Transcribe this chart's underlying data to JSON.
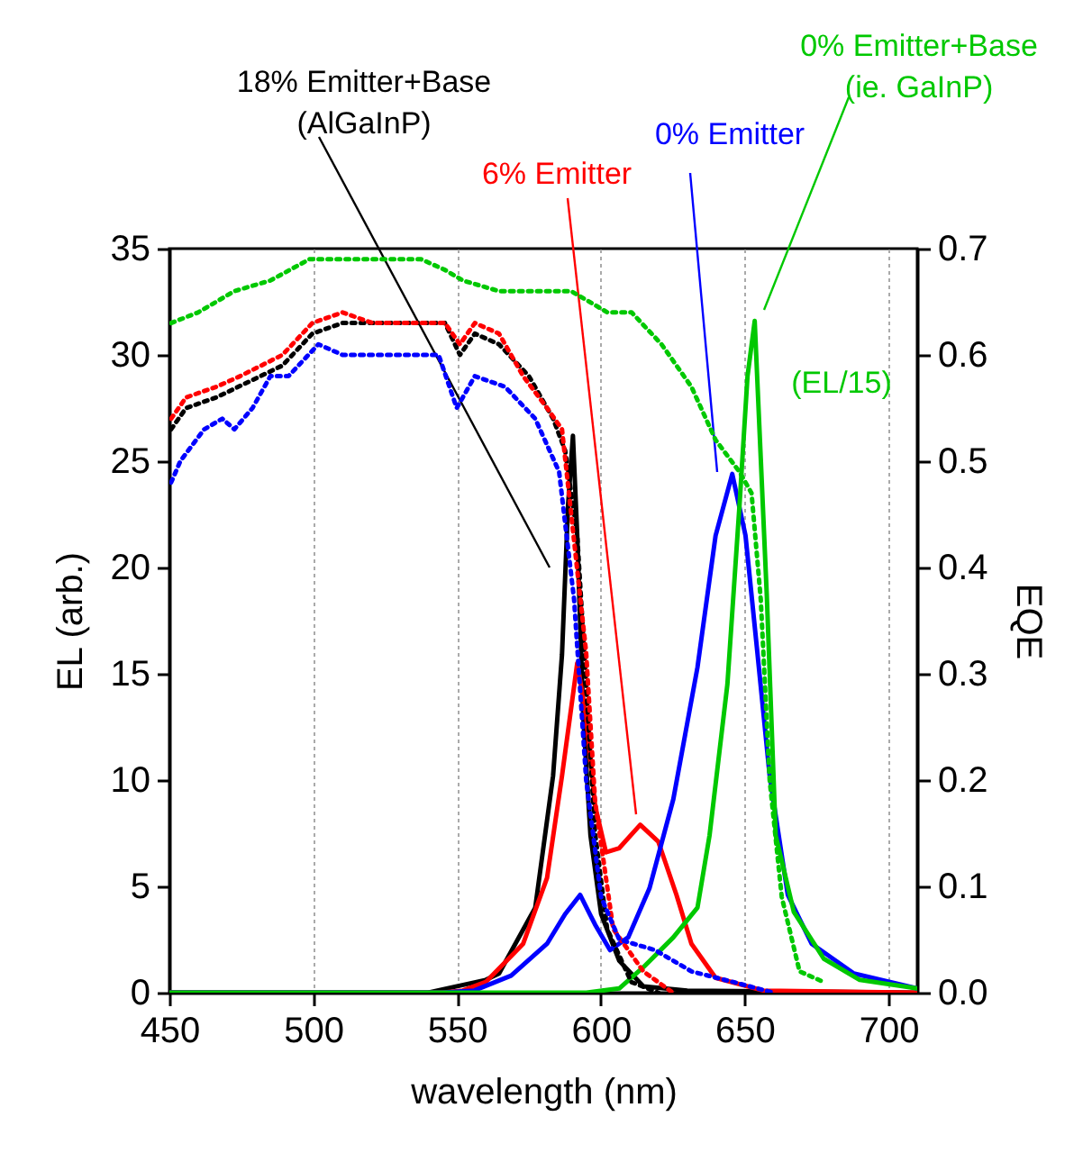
{
  "chart_data": {
    "type": "line",
    "xlabel": "wavelength (nm)",
    "ylabel": "EL (arb.)",
    "y2label": "EQE",
    "xlim": [
      450,
      710
    ],
    "xticks": [
      450,
      500,
      550,
      600,
      650,
      700
    ],
    "ylim": [
      0,
      35
    ],
    "yticks": [
      0,
      5,
      10,
      15,
      20,
      25,
      30,
      35
    ],
    "y2lim": [
      0,
      0.7
    ],
    "y2ticks": [
      {
        "value": 0,
        "label": "0.0"
      },
      0.1,
      0.2,
      0.3,
      0.4,
      0.5,
      0.6,
      0.7
    ],
    "grid": "x",
    "annotations": [
      "18% Emitter+Base\n(AlGaInP)",
      "6% Emitter",
      "0% Emitter",
      "0% Emitter+Base\n(ie. GaInP)",
      "(EL/15)"
    ],
    "series": [
      {
        "color": "#000000",
        "line_style": "solid",
        "x": [
          450,
          540,
          550,
          560,
          564.6,
          577.2,
          583.4,
          586.5,
          588.6,
          590.3,
          591.8,
          593.9,
          596.4,
          600.1,
          606.4,
          614.8,
          630,
          710
        ],
        "values": [
          0,
          0,
          0.3,
          0.6,
          0.9,
          4.0,
          10.2,
          15.9,
          22.9,
          26.2,
          21.5,
          13.0,
          7.4,
          3.7,
          1.5,
          0.3,
          0.1,
          0
        ]
      },
      {
        "color": "#ff0000",
        "line_style": "solid",
        "x": [
          450,
          545,
          552,
          560,
          573,
          581.3,
          586.5,
          591.8,
          594.9,
          598,
          601.8,
          606.4,
          613.7,
          620,
          626.3,
          631.5,
          639.9,
          656.5,
          710
        ],
        "values": [
          0,
          0,
          0.1,
          0.5,
          2.3,
          5.4,
          10.2,
          15.5,
          13.0,
          8.8,
          6.6,
          6.8,
          7.9,
          7.1,
          4.6,
          2.3,
          0.7,
          0.1,
          0
        ]
      },
      {
        "color": "#0000ff",
        "line_style": "solid",
        "x": [
          450,
          545,
          556,
          568.8,
          581.3,
          587.6,
          592.8,
          598,
          603.2,
          609.5,
          616.9,
          625.2,
          633.6,
          639.9,
          645.7,
          650.3,
          654.5,
          658.7,
          665,
          673.3,
          688,
          710
        ],
        "values": [
          0,
          0,
          0.1,
          0.8,
          2.3,
          3.7,
          4.6,
          3.2,
          2.0,
          2.6,
          4.9,
          9.1,
          15.3,
          21.5,
          24.4,
          21.5,
          15.9,
          10.2,
          4.6,
          2.3,
          0.9,
          0.2
        ]
      },
      {
        "color": "#00c800",
        "line_style": "solid",
        "x": [
          450,
          595,
          606.4,
          614.8,
          625.2,
          633.6,
          637.8,
          644,
          648.2,
          651,
          653.5,
          657.7,
          660.8,
          667.1,
          677.5,
          690,
          710
        ],
        "values": [
          0,
          0,
          0.2,
          1.2,
          2.6,
          4.0,
          7.4,
          14.5,
          22.9,
          29,
          31.6,
          18.7,
          7.4,
          3.8,
          1.6,
          0.6,
          0.2
        ]
      },
      {
        "color": "#000000",
        "line_style": "dotted",
        "axis": "y2",
        "x": [
          450.6,
          455.8,
          466.3,
          489.3,
          499.7,
          510.2,
          524.8,
          545.8,
          551,
          556.2,
          564.6,
          575,
          583.4,
          587.6,
          591.8,
          594.9,
          598,
          602.2,
          610.6,
          620
        ],
        "values": [
          0.53,
          0.55,
          0.56,
          0.59,
          0.62,
          0.63,
          0.63,
          0.63,
          0.6,
          0.62,
          0.61,
          0.58,
          0.54,
          0.51,
          0.43,
          0.29,
          0.15,
          0.06,
          0.01,
          0
        ]
      },
      {
        "color": "#ff0000",
        "line_style": "dotted",
        "axis": "y2",
        "x": [
          450.6,
          455.8,
          466.3,
          474.6,
          489.3,
          499.7,
          510.2,
          520.6,
          531,
          545.8,
          551,
          556.2,
          564.6,
          573,
          581.3,
          586.5,
          594.9,
          598,
          604.3,
          614.8,
          625
        ],
        "values": [
          0.54,
          0.56,
          0.57,
          0.58,
          0.6,
          0.63,
          0.64,
          0.63,
          0.63,
          0.63,
          0.61,
          0.63,
          0.62,
          0.58,
          0.55,
          0.53,
          0.32,
          0.18,
          0.06,
          0.02,
          0
        ]
      },
      {
        "color": "#0000ff",
        "line_style": "dotted",
        "axis": "y2",
        "x": [
          450.6,
          453.8,
          462.1,
          468.4,
          472.6,
          478.9,
          485.1,
          491.4,
          501.8,
          510.2,
          531,
          543.6,
          549.9,
          556.2,
          566.7,
          577.2,
          585.5,
          590.7,
          594.9,
          600.1,
          606.4,
          618.9,
          631.5,
          646,
          660
        ],
        "values": [
          0.48,
          0.5,
          0.53,
          0.54,
          0.53,
          0.55,
          0.58,
          0.58,
          0.61,
          0.6,
          0.6,
          0.6,
          0.55,
          0.58,
          0.57,
          0.54,
          0.49,
          0.37,
          0.2,
          0.09,
          0.05,
          0.04,
          0.02,
          0.01,
          0
        ]
      },
      {
        "color": "#00c800",
        "line_style": "dotted",
        "axis": "y2",
        "x": [
          450.6,
          460,
          472.6,
          485.1,
          498.7,
          510.3,
          522.8,
          537.5,
          545.8,
          552,
          564.6,
          577.2,
          589.7,
          602.3,
          610.7,
          621.1,
          631.5,
          639.9,
          648.2,
          652.4,
          655.6,
          658.7,
          662.9,
          669.1,
          677.5
        ],
        "values": [
          0.63,
          0.64,
          0.66,
          0.67,
          0.69,
          0.69,
          0.69,
          0.69,
          0.68,
          0.67,
          0.66,
          0.66,
          0.66,
          0.64,
          0.64,
          0.61,
          0.57,
          0.52,
          0.49,
          0.47,
          0.37,
          0.2,
          0.09,
          0.02,
          0.01
        ]
      }
    ]
  }
}
